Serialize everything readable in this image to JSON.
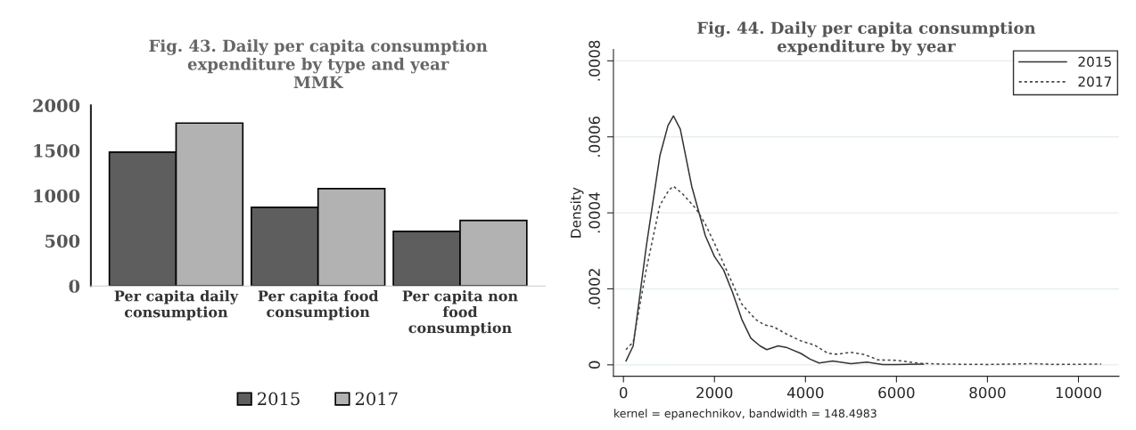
{
  "chart_data": [
    {
      "type": "bar",
      "title": "Fig. 43. Daily per capita consumption\nexpenditure by type and year\nMMK",
      "categories": [
        "Per capita daily\nconsumption",
        "Per capita food\nconsumption",
        "Per capita non\nfood\nconsumption"
      ],
      "series": [
        {
          "name": "2015",
          "color": "#5e5e5e",
          "values": [
            1482,
            871,
            605
          ]
        },
        {
          "name": "2017",
          "color": "#b2b2b2",
          "values": [
            1804,
            1078,
            725
          ]
        }
      ],
      "ylim": [
        0,
        2000
      ],
      "yticks": [
        0,
        500,
        1000,
        1500,
        2000
      ],
      "grid": false,
      "legend": "bottom"
    },
    {
      "type": "line",
      "title": "Fig. 44. Daily per capita consumption\nexpenditure by year",
      "ylabel": "Density",
      "annotations": [
        "kernel = epanechnikov, bandwidth = 148.4983"
      ],
      "series": [
        {
          "name": "2015",
          "color": "#333333",
          "line_style": "solid",
          "x": [
            55,
            214,
            500,
            800,
            980,
            1100,
            1250,
            1500,
            1800,
            2000,
            2200,
            2400,
            2600,
            2800,
            3000,
            3150,
            3400,
            3600,
            3900,
            4100,
            4300,
            4600,
            5000,
            5350,
            5700,
            6000,
            6600
          ],
          "values": [
            1e-05,
            5e-05,
            0.00031,
            0.00055,
            0.00063,
            0.000655,
            0.00062,
            0.00047,
            0.00034,
            0.000285,
            0.00025,
            0.00019,
            0.00012,
            7e-05,
            5e-05,
            4e-05,
            5e-05,
            4.5e-05,
            3e-05,
            1.5e-05,
            5e-06,
            1e-05,
            3e-06,
            7e-06,
            1e-06,
            1e-06,
            2e-06
          ]
        },
        {
          "name": "2017",
          "color": "#444444",
          "line_style": "dotted",
          "x": [
            55,
            214,
            500,
            800,
            1000,
            1100,
            1300,
            1600,
            1800,
            2000,
            2300,
            2600,
            2900,
            3100,
            3300,
            3600,
            3900,
            4200,
            4500,
            4700,
            5000,
            5300,
            5600,
            6000,
            6500,
            7000,
            8000,
            9000,
            9500,
            10500
          ],
          "values": [
            4e-05,
            6e-05,
            0.00025,
            0.00042,
            0.00046,
            0.00047,
            0.00045,
            0.00041,
            0.00037,
            0.00032,
            0.00024,
            0.00016,
            0.00012,
            0.000105,
            0.0001,
            8e-05,
            6.3e-05,
            5.2e-05,
            3e-05,
            2.8e-05,
            3.3e-05,
            2.7e-05,
            1.3e-05,
            1.2e-05,
            4e-06,
            2e-06,
            1e-06,
            3e-06,
            1e-06,
            2e-06
          ]
        }
      ],
      "xlim": [
        -220,
        10890
      ],
      "xticks": [
        0,
        2000,
        4000,
        6000,
        8000,
        10000
      ],
      "ylim": [
        -3e-05,
        0.00083
      ],
      "yticks": [
        {
          "value": 0,
          "label": "0"
        },
        {
          "value": 0.0002,
          "label": ".0002"
        },
        {
          "value": 0.0004,
          "label": ".0004"
        },
        {
          "value": 0.0006,
          "label": ".0006"
        },
        {
          "value": 0.0008,
          "label": ".0008"
        }
      ],
      "grid": "y",
      "legend": "top right"
    }
  ]
}
